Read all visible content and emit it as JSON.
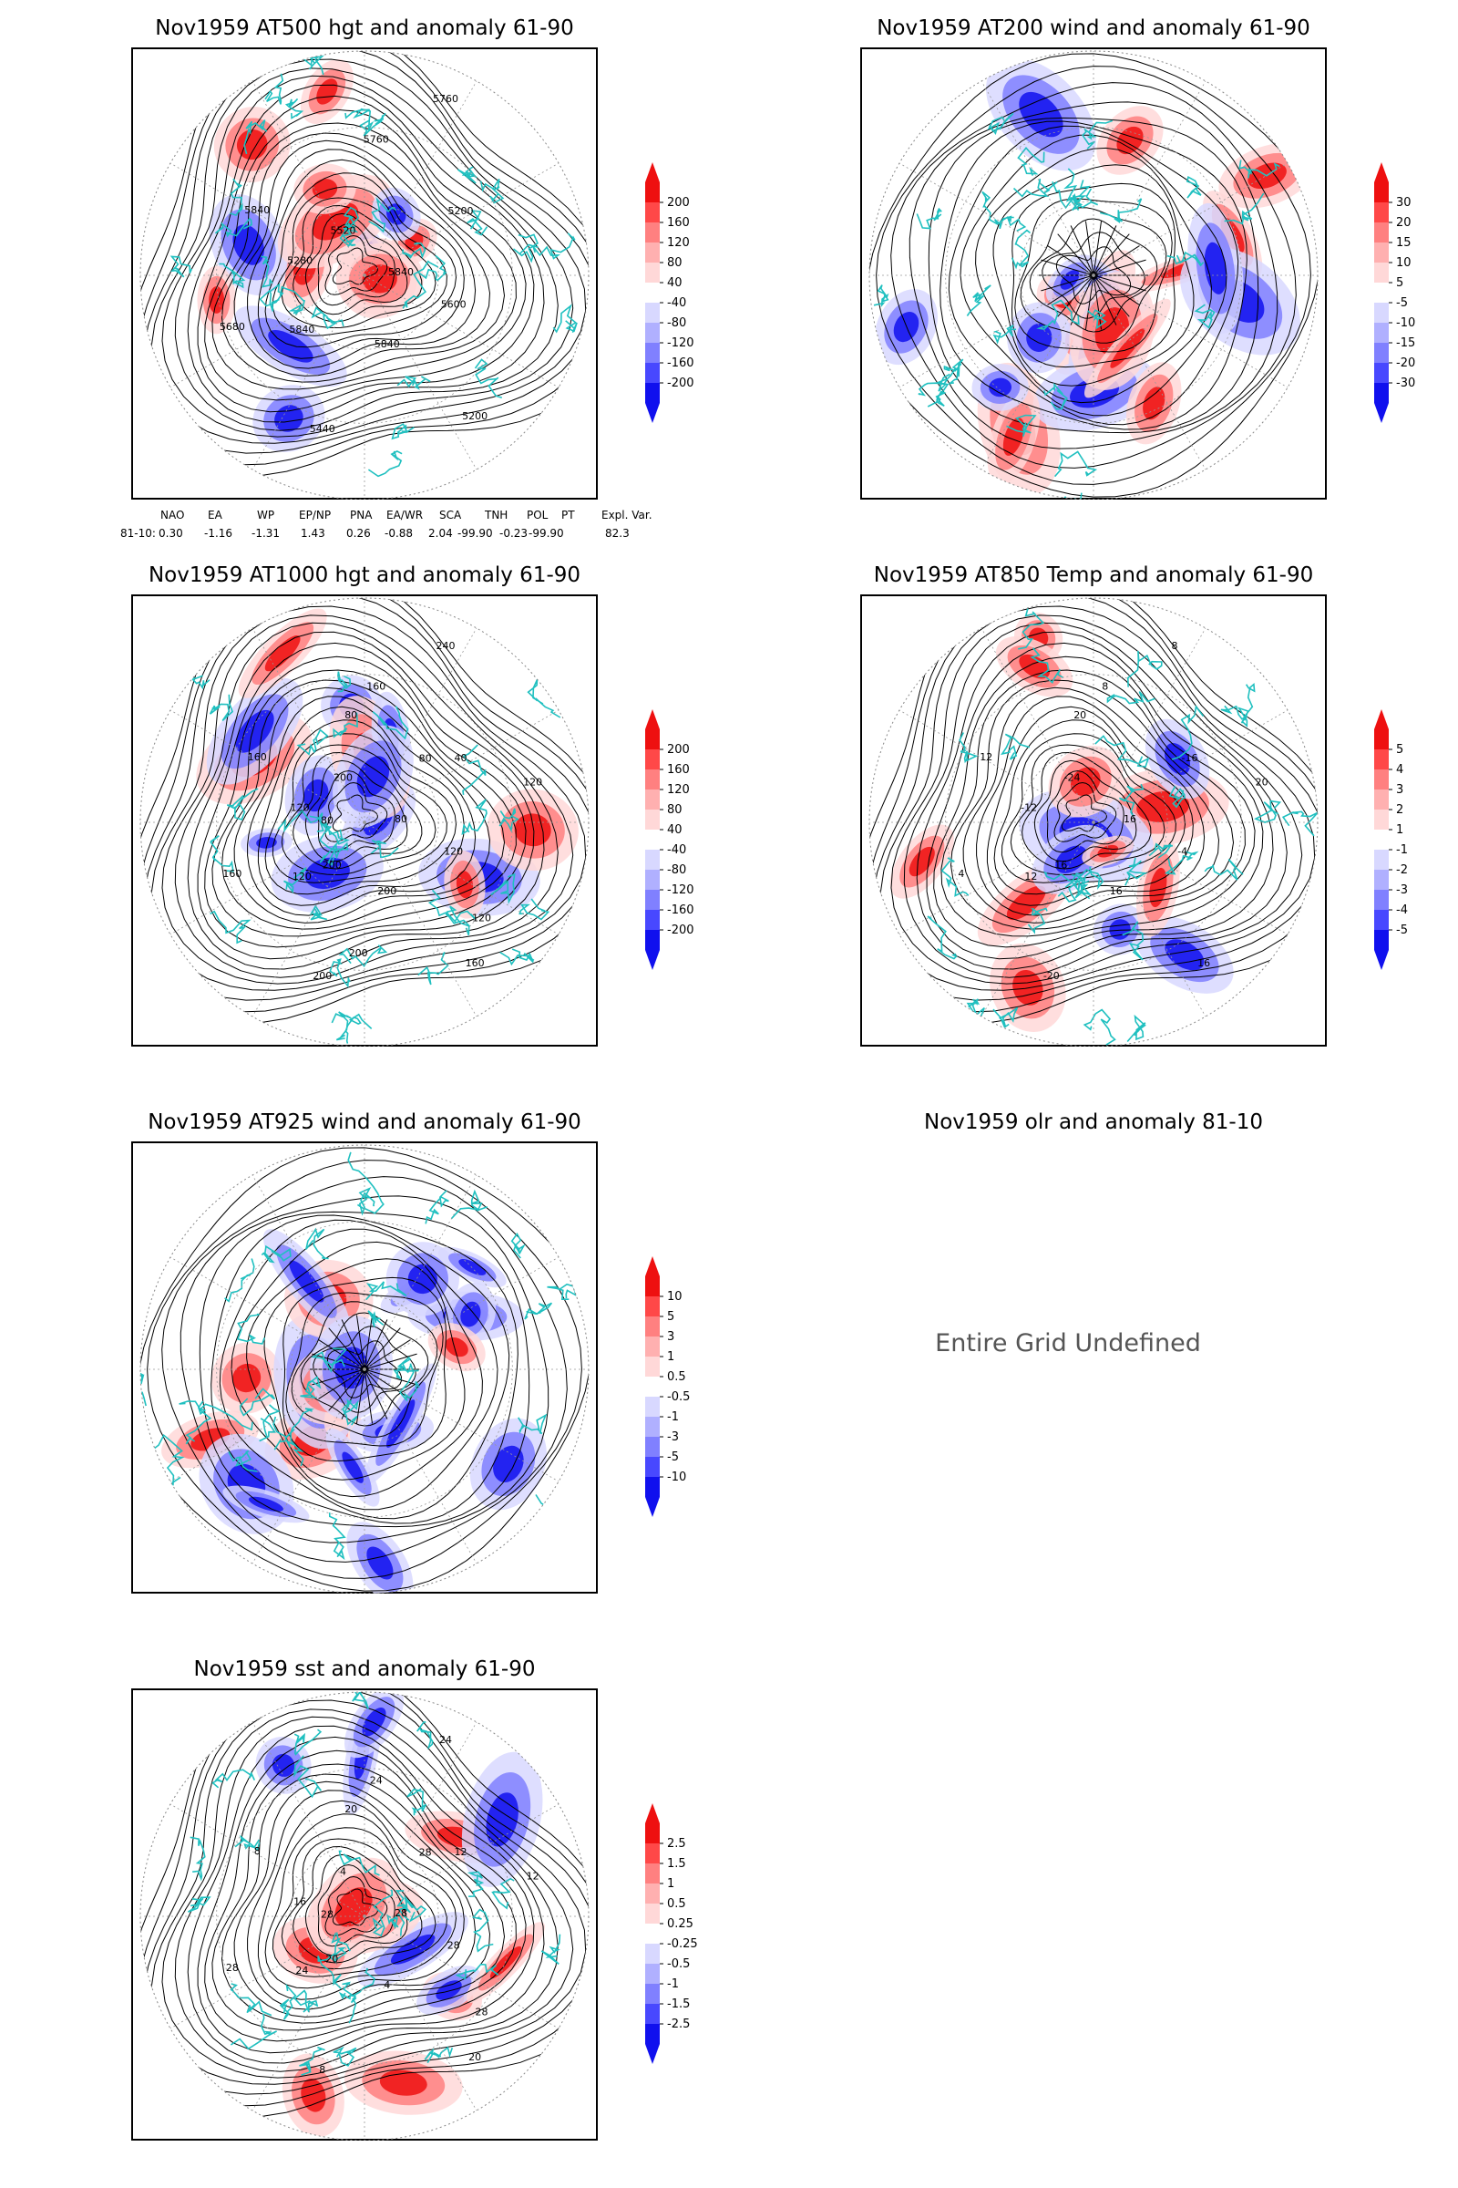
{
  "panels": [
    {
      "id": "p1",
      "title": "Nov1959 AT500 hgt and anomaly 61-90",
      "kind": "hgt",
      "colorbar_labels": [
        "200",
        "160",
        "120",
        "80",
        "40",
        "-40",
        "-80",
        "-120",
        "-160",
        "-200"
      ],
      "contour_labels": [
        "5840",
        "5840",
        "5760",
        "5200",
        "5280",
        "5200",
        "5440",
        "5520",
        "5600",
        "5680",
        "5760",
        "5840",
        "5840"
      ]
    },
    {
      "id": "p2",
      "title": "Nov1959 AT200 wind and anomaly 61-90",
      "kind": "wind",
      "colorbar_labels": [
        "30",
        "20",
        "15",
        "10",
        "5",
        "-5",
        "-10",
        "-15",
        "-20",
        "-30"
      ],
      "contour_labels": []
    },
    {
      "id": "p3",
      "title": "Nov1959 AT1000 hgt and anomaly 61-90",
      "kind": "hgt",
      "colorbar_labels": [
        "200",
        "160",
        "120",
        "80",
        "40",
        "-40",
        "-80",
        "-120",
        "-160",
        "-200"
      ],
      "contour_labels": [
        "80",
        "120",
        "160",
        "160",
        "120",
        "40",
        "200",
        "200",
        "120",
        "160",
        "240",
        "200",
        "160",
        "120",
        "200",
        "80",
        "120",
        "80",
        "80",
        "200"
      ]
    },
    {
      "id": "p4",
      "title": "Nov1959 AT850 Temp and anomaly 61-90",
      "kind": "temp",
      "colorbar_labels": [
        "5",
        "4",
        "3",
        "2",
        "1",
        "-1",
        "-2",
        "-3",
        "-4",
        "-5"
      ],
      "contour_labels": [
        "16",
        "12",
        "8",
        "16",
        "-12",
        "-16",
        "-20",
        "-24",
        "-4",
        "4",
        "8",
        "16",
        "12",
        "20",
        "16",
        "20"
      ]
    },
    {
      "id": "p5",
      "title": "Nov1959 AT925 wind and anomaly 61-90",
      "kind": "wind",
      "colorbar_labels": [
        "10",
        "5",
        "3",
        "1",
        "0.5",
        "-0.5",
        "-1",
        "-3",
        "-5",
        "-10"
      ],
      "contour_labels": []
    },
    {
      "id": "p6",
      "title": "Nov1959 olr and anomaly 81-10",
      "kind": "undefined",
      "message": "Entire Grid Undefined"
    },
    {
      "id": "p7",
      "title": "Nov1959 sst and anomaly 61-90",
      "kind": "sst",
      "colorbar_labels": [
        "2.5",
        "1.5",
        "1",
        "0.5",
        "0.25",
        "-0.25",
        "-0.5",
        "-1",
        "-1.5",
        "-2.5"
      ],
      "contour_labels": [
        "28",
        "24",
        "24",
        "20",
        "16",
        "12",
        "8",
        "4",
        "28",
        "28",
        "24",
        "4",
        "8",
        "12",
        "20",
        "20",
        "28",
        "28",
        "28"
      ]
    }
  ],
  "indices": {
    "headers": [
      "NAO",
      "EA",
      "WP",
      "EP/NP",
      "PNA",
      "EA/WR",
      "SCA",
      "TNH",
      "POL",
      "PT",
      "Expl. Var."
    ],
    "row_label": "81-10:",
    "values": [
      "0.30",
      "-1.16",
      "-1.31",
      "1.43",
      "0.26",
      "-0.88",
      "2.04",
      "-99.90",
      "-0.23",
      "-99.90",
      "82.3"
    ]
  },
  "colors": {
    "positive_ramp": [
      "#ffd8d8",
      "#ffb0b0",
      "#ff8080",
      "#ff4848",
      "#ee1010"
    ],
    "negative_ramp": [
      "#d8d8ff",
      "#b0b0ff",
      "#8080ff",
      "#4848ff",
      "#1010ee"
    ],
    "coastline": "#20c0c0",
    "contour": "#000000"
  }
}
